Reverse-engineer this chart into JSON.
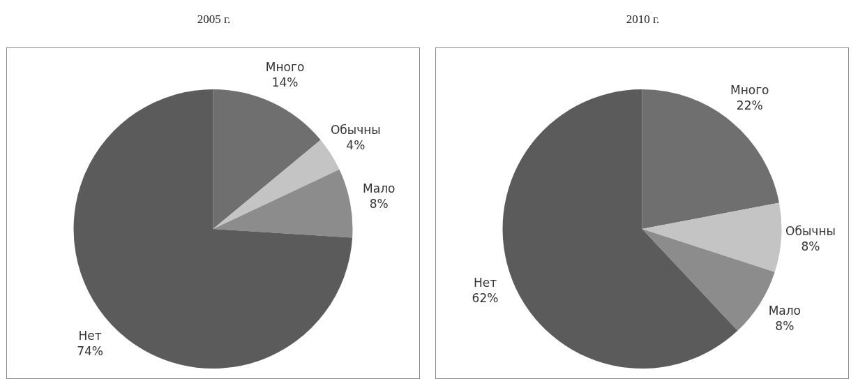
{
  "chart_data": [
    {
      "type": "pie",
      "title": "2005 г.",
      "categories": [
        "Много",
        "Обычны",
        "Мало",
        "Нет"
      ],
      "values": [
        14,
        4,
        8,
        74
      ],
      "value_labels": [
        "14%",
        "4%",
        "8%",
        "74%"
      ],
      "colors": [
        "#6f6f6f",
        "#c4c4c4",
        "#8c8c8c",
        "#5b5b5b"
      ],
      "legend": false
    },
    {
      "type": "pie",
      "title": "2010 г.",
      "categories": [
        "Много",
        "Обычны",
        "Мало",
        "Нет"
      ],
      "values": [
        22,
        8,
        8,
        62
      ],
      "value_labels": [
        "22%",
        "8%",
        "8%",
        "62%"
      ],
      "colors": [
        "#6f6f6f",
        "#c4c4c4",
        "#8c8c8c",
        "#5b5b5b"
      ],
      "legend": false
    }
  ]
}
